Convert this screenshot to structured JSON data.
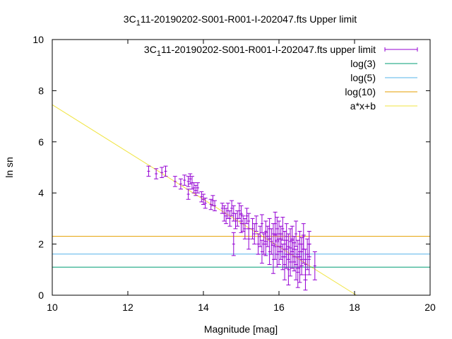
{
  "chart_data": {
    "type": "scatter",
    "title_prefix": "3C",
    "title_sub": "1",
    "title_suffix": "11-20190202-S001-R001-I-202047.fts Upper limit",
    "xlabel": "Magnitude [mag]",
    "ylabel": "ln sn",
    "xlim": [
      10,
      20
    ],
    "ylim": [
      0,
      10
    ],
    "xticks": [
      "10",
      "12",
      "14",
      "16",
      "18",
      "20"
    ],
    "yticks": [
      "0",
      "2",
      "4",
      "6",
      "8",
      "10"
    ],
    "grid": false,
    "legend_position": "top-right",
    "legend": [
      {
        "label_prefix": "3C",
        "label_sub": "1",
        "label_suffix": "11-20190202-S001-R001-I-202047.fts upper limit",
        "color": "#9400d3",
        "style": "errorbar"
      },
      {
        "label_prefix": "log(3)",
        "label_sub": "",
        "label_suffix": "",
        "color": "#009e73",
        "style": "line"
      },
      {
        "label_prefix": "log(5)",
        "label_sub": "",
        "label_suffix": "",
        "color": "#56b4e9",
        "style": "line"
      },
      {
        "label_prefix": "log(10)",
        "label_sub": "",
        "label_suffix": "",
        "color": "#e69f00",
        "style": "line"
      },
      {
        "label_prefix": "a*x+b",
        "label_sub": "",
        "label_suffix": "",
        "color": "#f0e442",
        "style": "line"
      }
    ],
    "hlines": [
      {
        "name": "log(3)",
        "y": 1.0986,
        "color": "#009e73"
      },
      {
        "name": "log(5)",
        "y": 1.6094,
        "color": "#56b4e9"
      },
      {
        "name": "log(10)",
        "y": 2.3026,
        "color": "#e69f00"
      }
    ],
    "fit_line": {
      "name": "a*x+b",
      "x": [
        10,
        18.05
      ],
      "y": [
        7.45,
        0
      ],
      "color": "#f0e442"
    },
    "series": [
      {
        "name": "upper limit",
        "color": "#9400d3",
        "points": [
          [
            12.55,
            4.85,
            0.2
          ],
          [
            12.75,
            4.75,
            0.2
          ],
          [
            12.9,
            4.8,
            0.2
          ],
          [
            13.0,
            4.85,
            0.2
          ],
          [
            13.25,
            4.45,
            0.2
          ],
          [
            13.4,
            4.35,
            0.2
          ],
          [
            13.5,
            4.5,
            0.2
          ],
          [
            13.6,
            4.45,
            0.2
          ],
          [
            13.65,
            4.55,
            0.2
          ],
          [
            13.7,
            4.4,
            0.25
          ],
          [
            13.75,
            4.2,
            0.2
          ],
          [
            13.8,
            4.1,
            0.2
          ],
          [
            13.85,
            4.2,
            0.2
          ],
          [
            13.6,
            3.95,
            0.2
          ],
          [
            13.95,
            3.85,
            0.2
          ],
          [
            14.0,
            3.75,
            0.2
          ],
          [
            14.05,
            3.6,
            0.2
          ],
          [
            14.2,
            3.55,
            0.2
          ],
          [
            14.25,
            3.7,
            0.2
          ],
          [
            14.3,
            3.5,
            0.2
          ],
          [
            14.5,
            3.4,
            0.2
          ],
          [
            14.55,
            3.2,
            0.3
          ],
          [
            14.6,
            3.1,
            0.3
          ],
          [
            14.65,
            3.3,
            0.3
          ],
          [
            14.7,
            3.0,
            0.3
          ],
          [
            14.75,
            3.4,
            0.3
          ],
          [
            14.8,
            3.2,
            0.3
          ],
          [
            14.85,
            2.9,
            0.3
          ],
          [
            14.9,
            3.0,
            0.3
          ],
          [
            14.95,
            3.3,
            0.3
          ],
          [
            15.0,
            3.2,
            0.3
          ],
          [
            15.05,
            2.8,
            0.3
          ],
          [
            15.1,
            2.6,
            0.4
          ],
          [
            15.15,
            3.1,
            0.3
          ],
          [
            15.2,
            2.9,
            0.3
          ],
          [
            15.3,
            2.6,
            0.4
          ],
          [
            15.35,
            2.4,
            0.4
          ],
          [
            15.4,
            2.8,
            0.3
          ],
          [
            14.8,
            2.0,
            0.45
          ],
          [
            15.5,
            2.3,
            0.4
          ],
          [
            15.55,
            2.8,
            0.35
          ],
          [
            15.6,
            2.0,
            0.4
          ],
          [
            15.65,
            2.5,
            0.4
          ],
          [
            15.7,
            2.3,
            0.4
          ],
          [
            15.75,
            2.6,
            0.4
          ],
          [
            15.8,
            2.1,
            0.5
          ],
          [
            15.85,
            2.4,
            0.4
          ],
          [
            15.9,
            1.9,
            0.5
          ],
          [
            15.95,
            2.6,
            0.45
          ],
          [
            16.0,
            1.7,
            0.5
          ],
          [
            16.05,
            2.2,
            0.5
          ],
          [
            16.1,
            1.5,
            0.5
          ],
          [
            16.15,
            2.0,
            0.5
          ],
          [
            16.2,
            1.6,
            0.55
          ],
          [
            16.25,
            1.9,
            0.5
          ],
          [
            16.3,
            1.3,
            0.55
          ],
          [
            16.35,
            2.2,
            0.5
          ],
          [
            16.4,
            1.8,
            0.5
          ],
          [
            16.45,
            1.2,
            0.6
          ],
          [
            16.5,
            1.6,
            0.55
          ],
          [
            16.55,
            1.1,
            0.6
          ],
          [
            16.6,
            1.4,
            0.6
          ],
          [
            16.65,
            1.8,
            0.55
          ],
          [
            16.7,
            1.2,
            0.6
          ],
          [
            16.75,
            1.6,
            0.6
          ],
          [
            16.8,
            1.4,
            0.6
          ],
          [
            16.95,
            1.15,
            0.55
          ],
          [
            16.0,
            2.4,
            0.5
          ],
          [
            15.9,
            2.8,
            0.45
          ],
          [
            16.1,
            2.6,
            0.45
          ],
          [
            16.2,
            2.3,
            0.5
          ],
          [
            16.3,
            2.1,
            0.5
          ],
          [
            16.05,
            1.9,
            0.5
          ],
          [
            15.95,
            1.6,
            0.5
          ],
          [
            15.85,
            1.4,
            0.55
          ],
          [
            16.15,
            1.2,
            0.6
          ],
          [
            16.25,
            1.0,
            0.6
          ],
          [
            16.4,
            1.5,
            0.55
          ],
          [
            16.55,
            2.0,
            0.5
          ],
          [
            16.65,
            2.3,
            0.5
          ],
          [
            16.7,
            0.8,
            0.6
          ],
          [
            16.8,
            2.0,
            0.5
          ],
          [
            15.75,
            1.7,
            0.5
          ],
          [
            15.65,
            2.0,
            0.45
          ],
          [
            16.35,
            1.6,
            0.55
          ],
          [
            16.45,
            2.4,
            0.5
          ],
          [
            16.5,
            0.9,
            0.6
          ],
          [
            16.6,
            1.7,
            0.55
          ],
          [
            15.0,
            2.8,
            0.35
          ],
          [
            15.2,
            2.2,
            0.4
          ],
          [
            15.45,
            2.0,
            0.4
          ],
          [
            15.55,
            1.7,
            0.45
          ]
        ]
      }
    ]
  }
}
